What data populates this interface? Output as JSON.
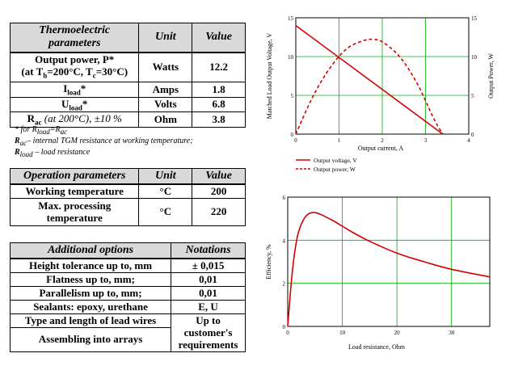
{
  "thermo": {
    "headers": [
      "Thermoelectric parameters",
      "Unit",
      "Value"
    ],
    "rows": [
      {
        "param_main": "Output power, P*",
        "param_prefix": "(at T",
        "sub_h": "h",
        "param_mid": "=200°C, T",
        "sub_c": "c",
        "param_suffix": "=30°C)",
        "unit": "Watts",
        "value": "12.2"
      },
      {
        "param_main": "I",
        "param_sub": "load",
        "param_suffix": "*",
        "unit": "Amps",
        "value": "1.8"
      },
      {
        "param_main": "U",
        "param_sub": "load",
        "param_suffix": "*",
        "unit": "Volts",
        "value": "6.8"
      },
      {
        "param_main": "R",
        "param_sub": "ac",
        "param_suffix": " (at 200°C), ±10 %",
        "unit": "Ohm",
        "value": "3.8"
      }
    ],
    "notes": {
      "n1_prefix": "* for R",
      "n1_sub1": "load",
      "n1_mid": "=R",
      "n1_sub2": "ac",
      "n2_main": "R",
      "n2_sub": "ac",
      "n2_text": "– internal TGM resistance at working temperature;",
      "n3_main": "R",
      "n3_sub": "load",
      "n3_text": " – load resistance"
    }
  },
  "operation": {
    "headers": [
      "Operation parameters",
      "Unit",
      "Value"
    ],
    "rows": [
      {
        "param": "Working temperature",
        "unit": "°C",
        "value": "200"
      },
      {
        "param": "Max. processing temperature",
        "unit": "°C",
        "value": "220"
      }
    ]
  },
  "options": {
    "headers": [
      "Additional options",
      "Notations"
    ],
    "rows": [
      {
        "option": "Height tolerance up to, mm",
        "notation": "± 0,015"
      },
      {
        "option": "Flatness up to, mm;",
        "notation": "0,01"
      },
      {
        "option": "Parallelism up to, mm;",
        "notation": "0,01"
      },
      {
        "option": "Sealants: epoxy, urethane",
        "notation": "E, U"
      },
      {
        "option": "Type and length of lead wires",
        "notation": "Up to"
      },
      {
        "option": "Assembling into arrays",
        "notation": "customer's requirements"
      }
    ]
  },
  "colors": {
    "curve": "#d40000",
    "grid": "#00b000"
  },
  "chart_data": [
    {
      "type": "line",
      "xlabel": "Output current, A",
      "ylabel": "Matched Load Output Voltage, V",
      "y2label": "Output Power, W",
      "xlim": [
        0,
        4
      ],
      "ylim": [
        0,
        15
      ],
      "y2lim": [
        0,
        15
      ],
      "xticks": [
        "0",
        "1",
        "2",
        "3",
        "4"
      ],
      "yticks": [
        "0",
        "5",
        "10",
        "15"
      ],
      "y2ticks": [
        "0",
        "5",
        "10",
        "15"
      ],
      "legend": [
        "Output voltage, V",
        "Output power, W"
      ],
      "series": [
        {
          "name": "Output voltage, V",
          "style": "solid",
          "x": [
            0,
            3.4
          ],
          "y": [
            14,
            0
          ]
        },
        {
          "name": "Output power, W",
          "style": "dashed",
          "x": [
            0,
            0.4,
            0.8,
            1.2,
            1.6,
            1.8,
            2.0,
            2.4,
            2.8,
            3.2,
            3.4
          ],
          "y": [
            0,
            4.9,
            8.6,
            11.1,
            12.1,
            12.2,
            11.9,
            10.0,
            6.6,
            1.9,
            0
          ]
        }
      ]
    },
    {
      "type": "line",
      "xlabel": "Load resistance, Ohm",
      "ylabel": "Efficiency, %",
      "xlim": [
        0,
        37
      ],
      "ylim": [
        0,
        6
      ],
      "xticks": [
        "0",
        "10",
        "20",
        "30"
      ],
      "yticks": [
        "0",
        "2",
        "4",
        "6"
      ],
      "series": [
        {
          "name": "Efficiency",
          "style": "solid",
          "x": [
            0,
            0.5,
            1,
            1.5,
            2,
            3,
            4,
            5,
            6,
            8,
            10,
            12,
            15,
            20,
            25,
            30,
            37
          ],
          "y": [
            0,
            1.6,
            2.9,
            3.8,
            4.4,
            5.0,
            5.25,
            5.28,
            5.2,
            4.95,
            4.65,
            4.35,
            3.95,
            3.4,
            3.0,
            2.65,
            2.3
          ]
        }
      ]
    }
  ]
}
